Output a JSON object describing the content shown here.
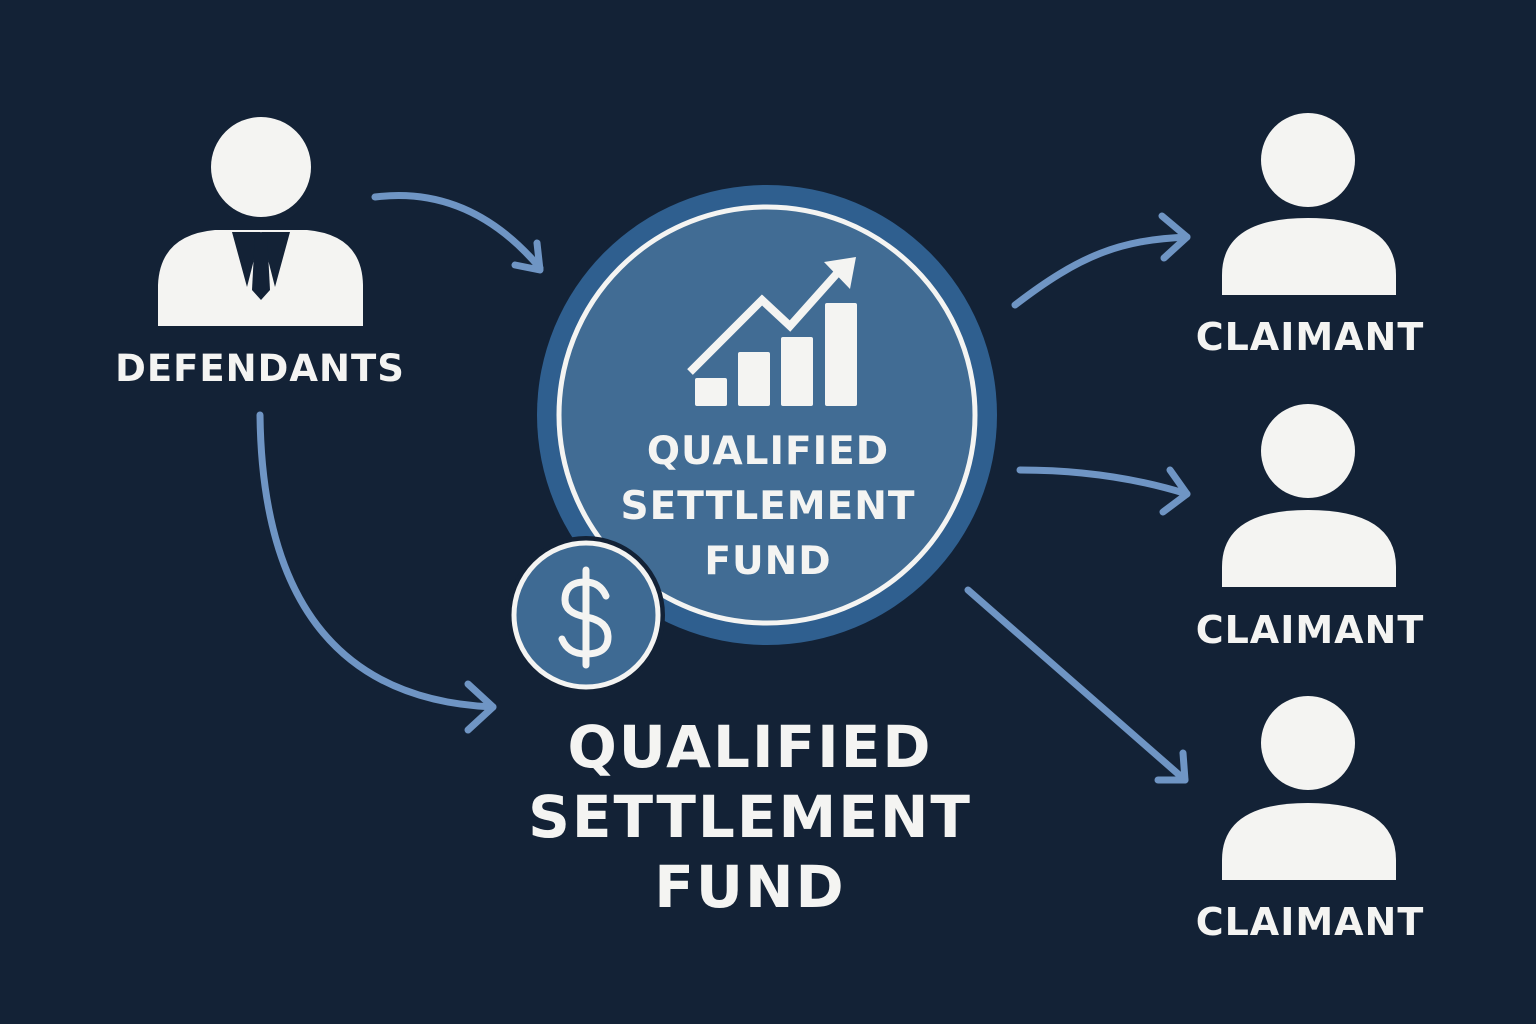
{
  "colors": {
    "background": "#132236",
    "fund_fill": "#416c94",
    "fund_outer": "#2f5f8f",
    "arrow": "#6f95c4",
    "figure": "#f4f4f2"
  },
  "defendants": {
    "label": "DEFENDANTS",
    "icon": "businessman-icon"
  },
  "fund_circle": {
    "icon": "growth-chart-icon",
    "title_lines": [
      "QUALIFIED",
      "SETTLEMENT",
      "FUND"
    ]
  },
  "dollar_badge": {
    "icon": "dollar-icon"
  },
  "main_title": {
    "lines": [
      "QUALIFIED",
      "SETTLEMENT",
      "FUND"
    ]
  },
  "claimants": [
    {
      "label": "CLAIMANT",
      "icon": "person-icon"
    },
    {
      "label": "CLAIMANT",
      "icon": "person-icon"
    },
    {
      "label": "CLAIMANT",
      "icon": "person-icon"
    }
  ]
}
